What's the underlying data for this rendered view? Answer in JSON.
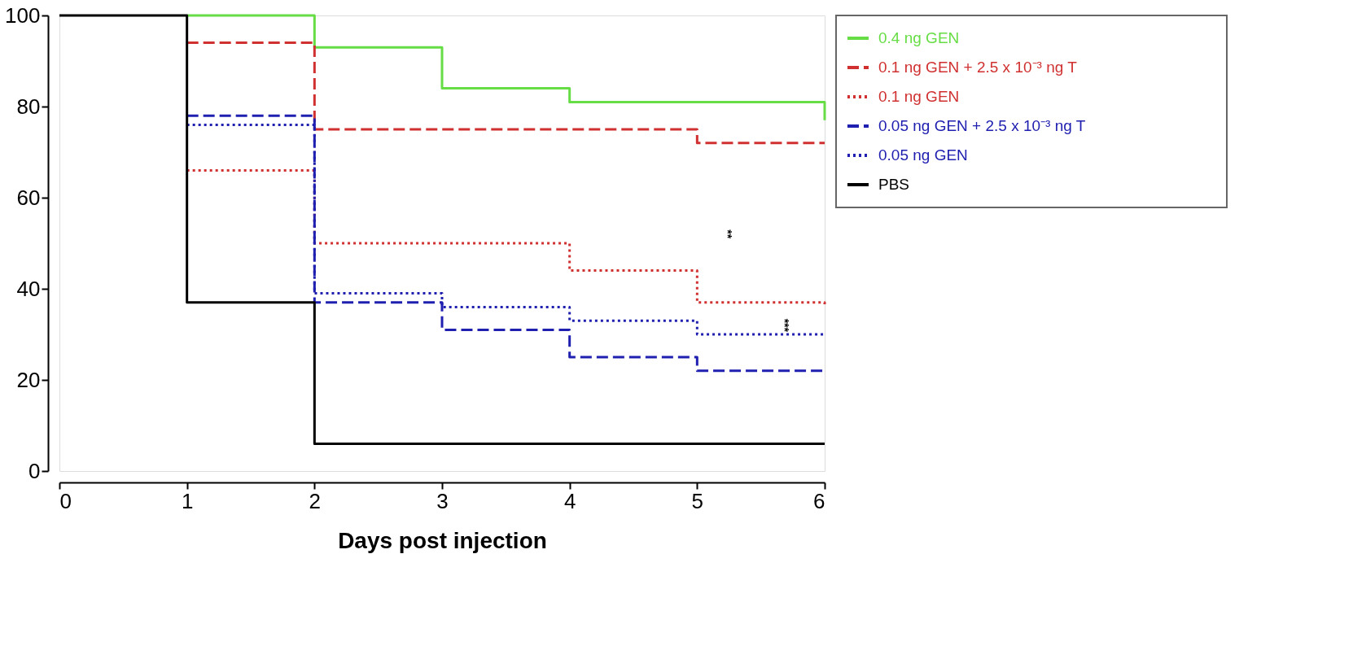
{
  "chart_data": {
    "type": "step",
    "xlabel": "Days post injection",
    "x": [
      0,
      1,
      2,
      3,
      4,
      5,
      6
    ],
    "xlim": [
      0,
      6
    ],
    "xticks": [
      0,
      1,
      2,
      3,
      4,
      5,
      6
    ],
    "ylim": [
      0,
      100
    ],
    "yticks": [
      0,
      20,
      40,
      60,
      80,
      100
    ],
    "grid": false,
    "legend": "right",
    "series": [
      {
        "name": "0.4 ng GEN",
        "color": "#66dd44",
        "line_style": "solid",
        "values": [
          null,
          100,
          93,
          84,
          81,
          81,
          77
        ]
      },
      {
        "name": "0.1 ng GEN + 2.5 x 10⁻³ ng T",
        "color": "#d03030",
        "line_style": "dashed",
        "values": [
          null,
          94,
          75,
          75,
          75,
          72,
          72
        ]
      },
      {
        "name": "0.1 ng GEN",
        "color": "#d03030",
        "line_style": "dotted",
        "values": [
          null,
          66,
          50,
          50,
          44,
          37,
          36
        ]
      },
      {
        "name": "0.05 ng GEN + 2.5 x 10⁻³ ng T",
        "color": "#2020b0",
        "line_style": "dashed",
        "values": [
          null,
          78,
          37,
          31,
          25,
          22,
          22
        ]
      },
      {
        "name": "0.05 ng GEN",
        "color": "#2020b0",
        "line_style": "dotted",
        "values": [
          null,
          76,
          39,
          36,
          33,
          30,
          30
        ]
      },
      {
        "name": "PBS",
        "color": "#000000",
        "line_style": "solid",
        "values": [
          100,
          37,
          6,
          6,
          6,
          6,
          6
        ]
      }
    ],
    "annotations": [
      "**",
      "***"
    ]
  }
}
